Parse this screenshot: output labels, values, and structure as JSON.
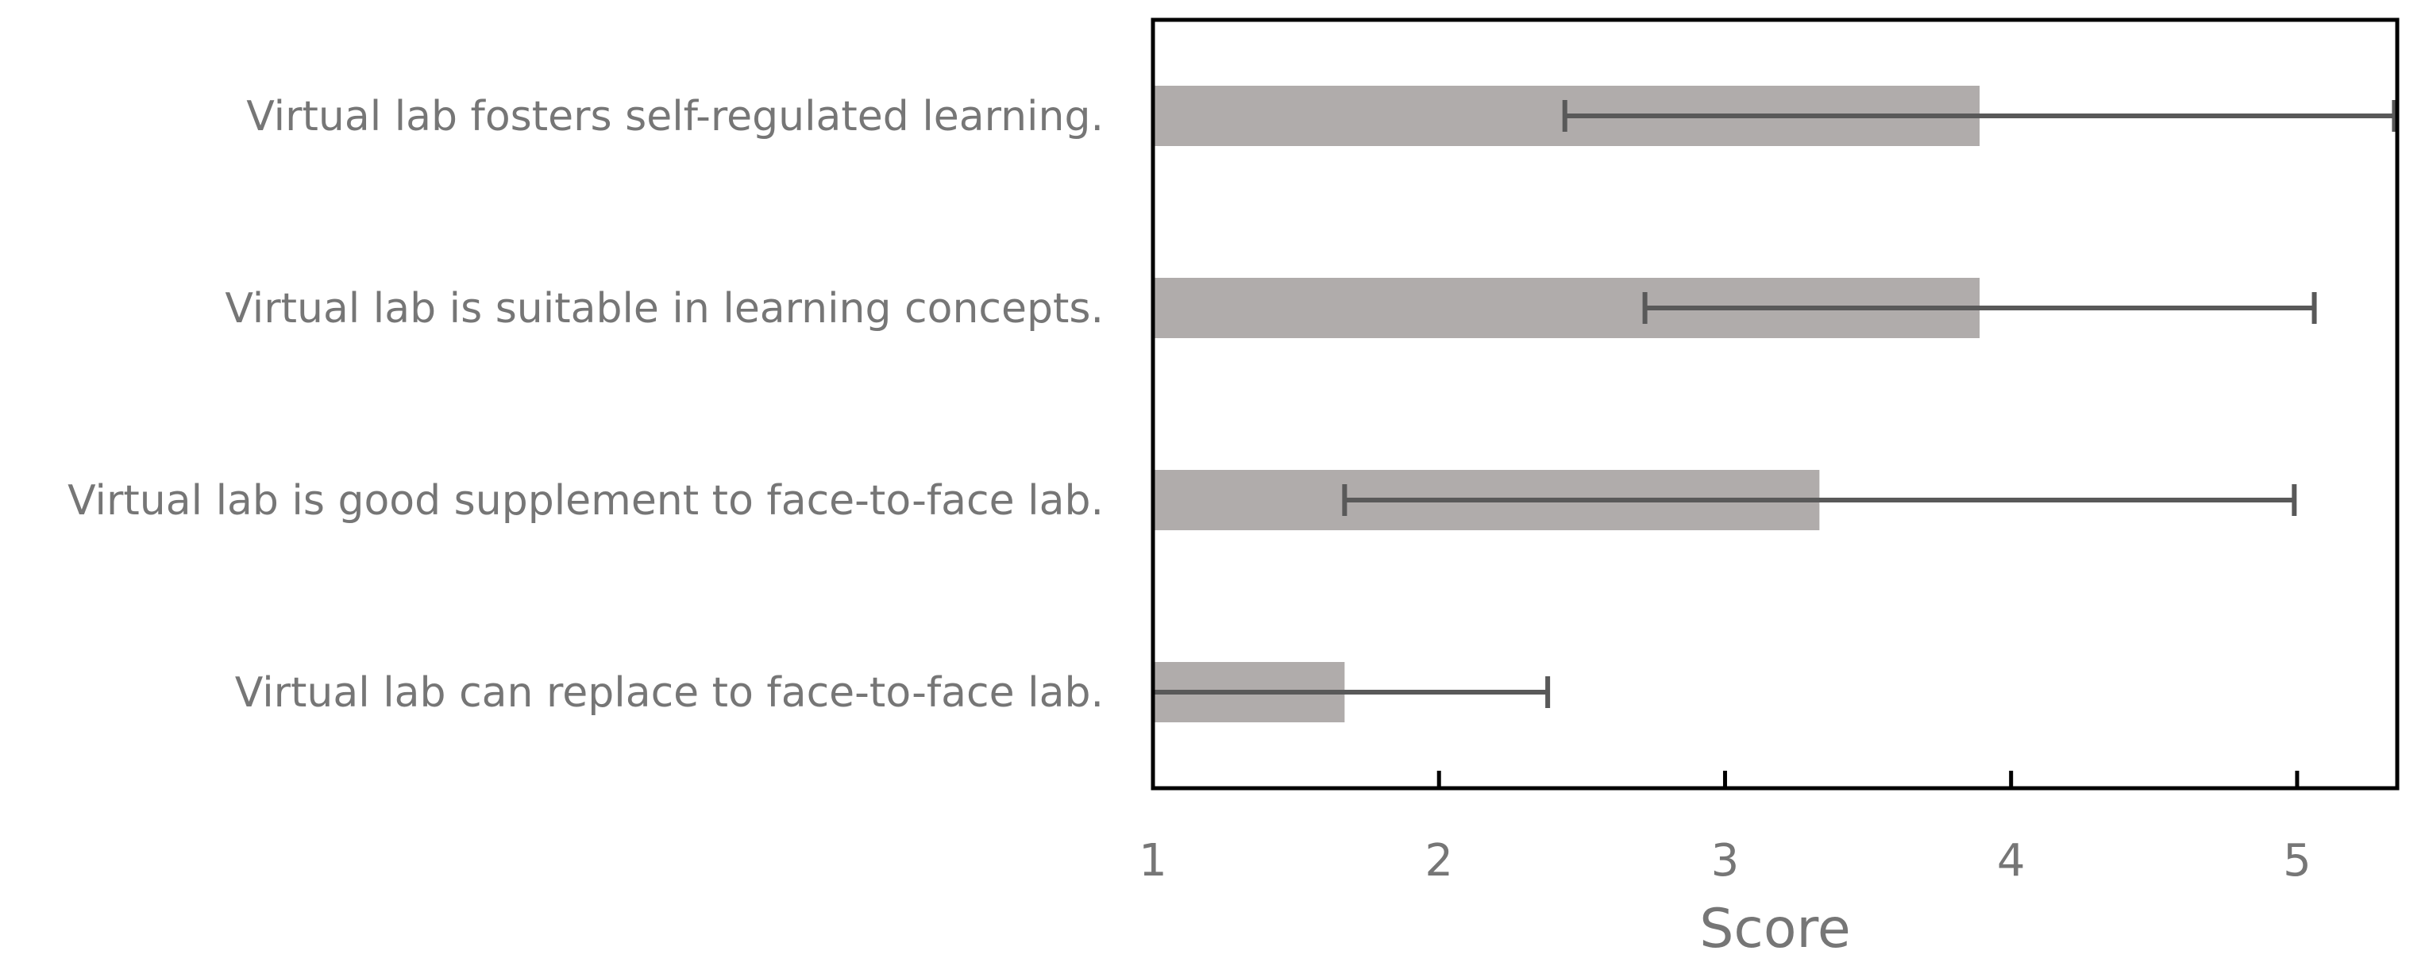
{
  "chart_data": {
    "type": "bar",
    "orientation": "horizontal",
    "categories": [
      "Virtual lab fosters self-regulated learning.",
      "Virtual lab is suitable in learning concepts.",
      "Virtual lab is good supplement to face-to-face lab.",
      "Virtual lab can replace to face-to-face lab."
    ],
    "series": [
      {
        "values": [
          3.89,
          3.89,
          3.33,
          1.67
        ],
        "error": [
          1.45,
          1.17,
          1.66,
          0.71
        ]
      }
    ],
    "xlabel": "Score",
    "ylabel": "",
    "xlim": [
      1,
      5.35
    ],
    "xticks": [
      1,
      2,
      3,
      4,
      5
    ],
    "grid": false,
    "legend": "none",
    "colors": {
      "bar": "#b0acab",
      "error_bar": "#595959",
      "axis": "#000000",
      "text": "#767676"
    }
  }
}
